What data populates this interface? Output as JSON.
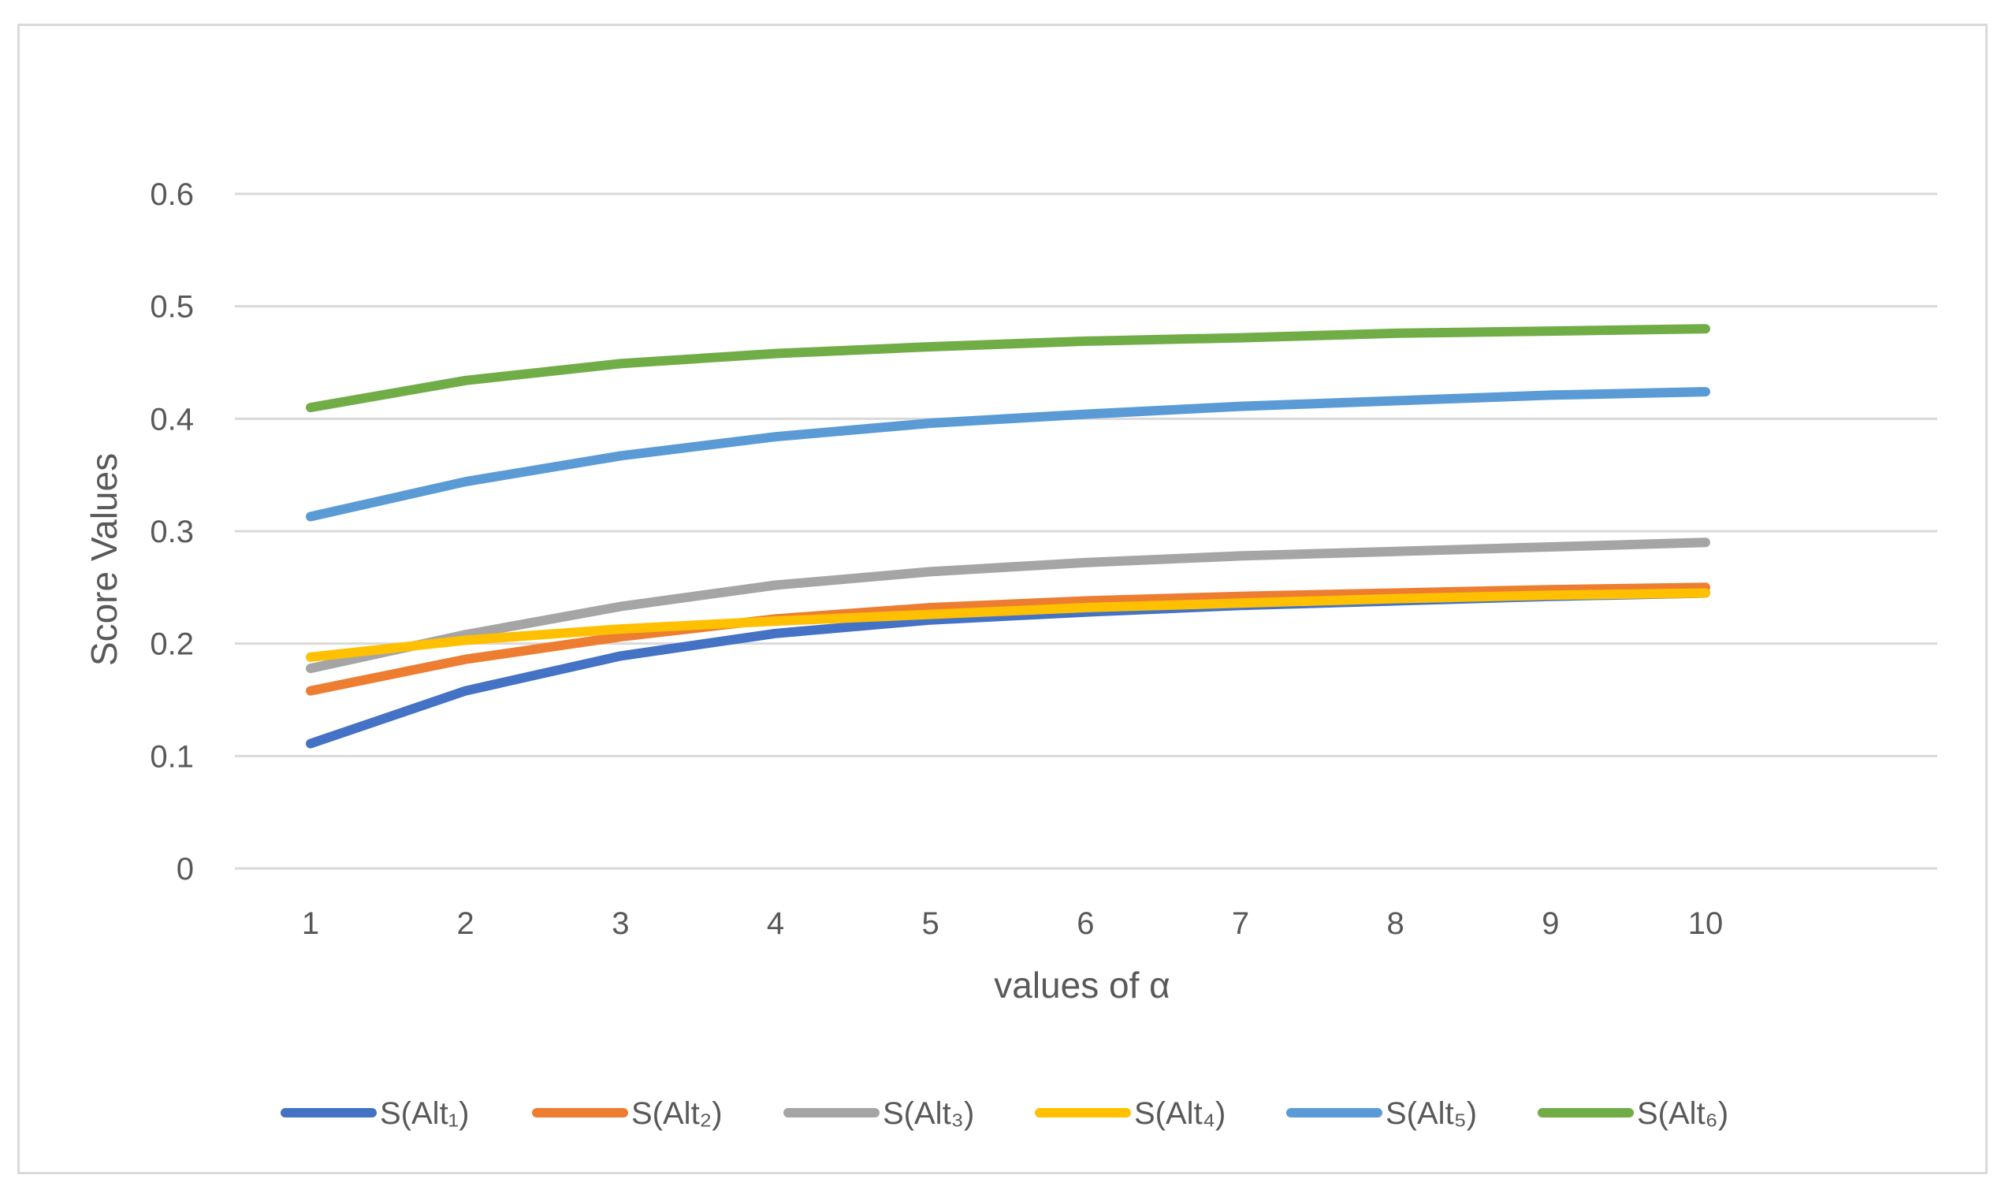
{
  "chart_data": {
    "type": "line",
    "title": "",
    "xlabel": "values of α",
    "ylabel": "Score Values",
    "categories": [
      "1",
      "2",
      "3",
      "4",
      "5",
      "6",
      "7",
      "8",
      "9",
      "10"
    ],
    "yticks": [
      "0",
      "0.1",
      "0.2",
      "0.3",
      "0.4",
      "0.5",
      "0.6"
    ],
    "ylim": [
      0,
      0.6
    ],
    "grid": true,
    "legend_position": "bottom",
    "series": [
      {
        "name": "S(Alt₁)",
        "color": "#4472c4",
        "values": [
          0.111,
          0.158,
          0.189,
          0.209,
          0.221,
          0.228,
          0.234,
          0.238,
          0.242,
          0.245
        ]
      },
      {
        "name": "S(Alt₂)",
        "color": "#ed7d31",
        "values": [
          0.158,
          0.186,
          0.206,
          0.222,
          0.232,
          0.238,
          0.242,
          0.245,
          0.248,
          0.25
        ]
      },
      {
        "name": "S(Alt₃)",
        "color": "#a5a5a5",
        "values": [
          0.178,
          0.208,
          0.233,
          0.252,
          0.264,
          0.272,
          0.278,
          0.282,
          0.286,
          0.29
        ]
      },
      {
        "name": "S(Alt₄)",
        "color": "#ffc000",
        "values": [
          0.188,
          0.203,
          0.213,
          0.22,
          0.226,
          0.232,
          0.236,
          0.24,
          0.243,
          0.245
        ]
      },
      {
        "name": "S(Alt₅)",
        "color": "#5b9bd5",
        "values": [
          0.313,
          0.344,
          0.367,
          0.384,
          0.396,
          0.404,
          0.411,
          0.416,
          0.421,
          0.424
        ]
      },
      {
        "name": "S(Alt₆)",
        "color": "#70ad47",
        "values": [
          0.41,
          0.434,
          0.449,
          0.458,
          0.464,
          0.469,
          0.472,
          0.476,
          0.478,
          0.48
        ]
      }
    ]
  }
}
